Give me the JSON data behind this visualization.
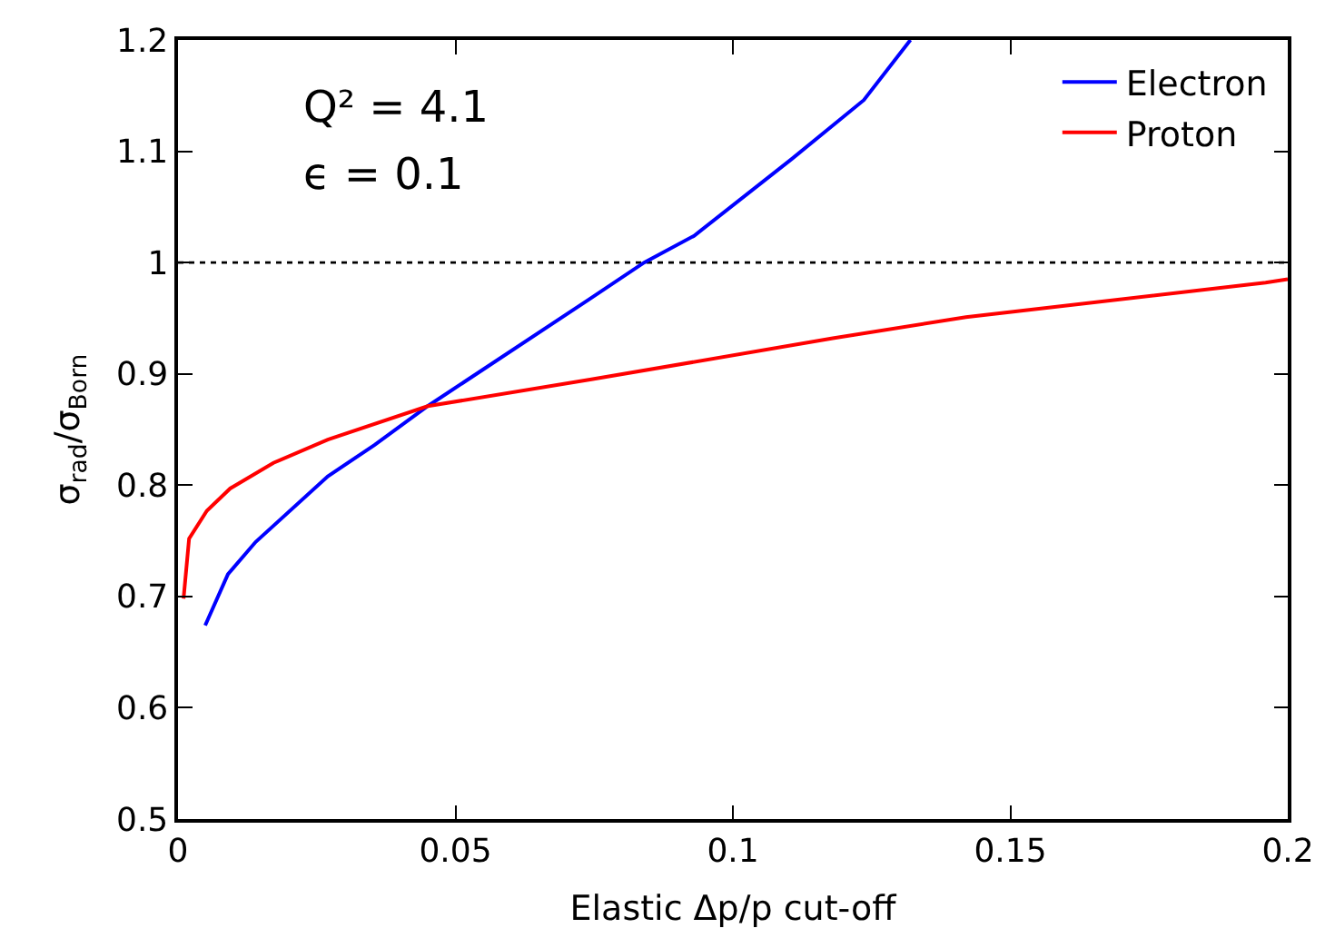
{
  "chart_data": {
    "type": "line",
    "xlabel": "Elastic Δp/p cut-off",
    "ylabel": "σ$_{rad}$/σ$_{Born}$",
    "annotations": [
      "Q² = 4.1",
      "ϵ = 0.1"
    ],
    "xlim": [
      0,
      0.2
    ],
    "xticks": [
      0,
      0.05,
      0.1,
      0.15,
      0.2
    ],
    "ylim": [
      0.5,
      1.2
    ],
    "yticks": [
      0.5,
      0.6,
      0.7,
      0.8,
      0.9,
      1,
      1.1,
      1.2
    ],
    "grid": false,
    "legend": "top right",
    "marker": "none",
    "line_style": "solid",
    "ref_lines": [
      {
        "axis": "y",
        "value": 1,
        "label": null,
        "color": "#000000",
        "line_style": "dotted"
      }
    ],
    "series": [
      {
        "name": "Electron",
        "color": "#0000ff",
        "x": [
          0.0049,
          0.009,
          0.014,
          0.027,
          0.0354,
          0.045,
          0.0741,
          0.084,
          0.093,
          0.1106,
          0.1236,
          0.132
        ],
        "values": [
          0.674,
          0.72,
          0.749,
          0.808,
          0.836,
          0.871,
          0.967,
          1.0,
          1.024,
          1.093,
          1.146,
          1.2
        ]
      },
      {
        "name": "Proton",
        "color": "#ff0000",
        "x": [
          0.001,
          0.002,
          0.0052,
          0.0094,
          0.0172,
          0.027,
          0.045,
          0.0745,
          0.118,
          0.142,
          0.196,
          0.2
        ],
        "values": [
          0.698,
          0.752,
          0.777,
          0.797,
          0.82,
          0.841,
          0.871,
          0.895,
          0.932,
          0.951,
          0.982,
          0.985
        ]
      }
    ]
  }
}
